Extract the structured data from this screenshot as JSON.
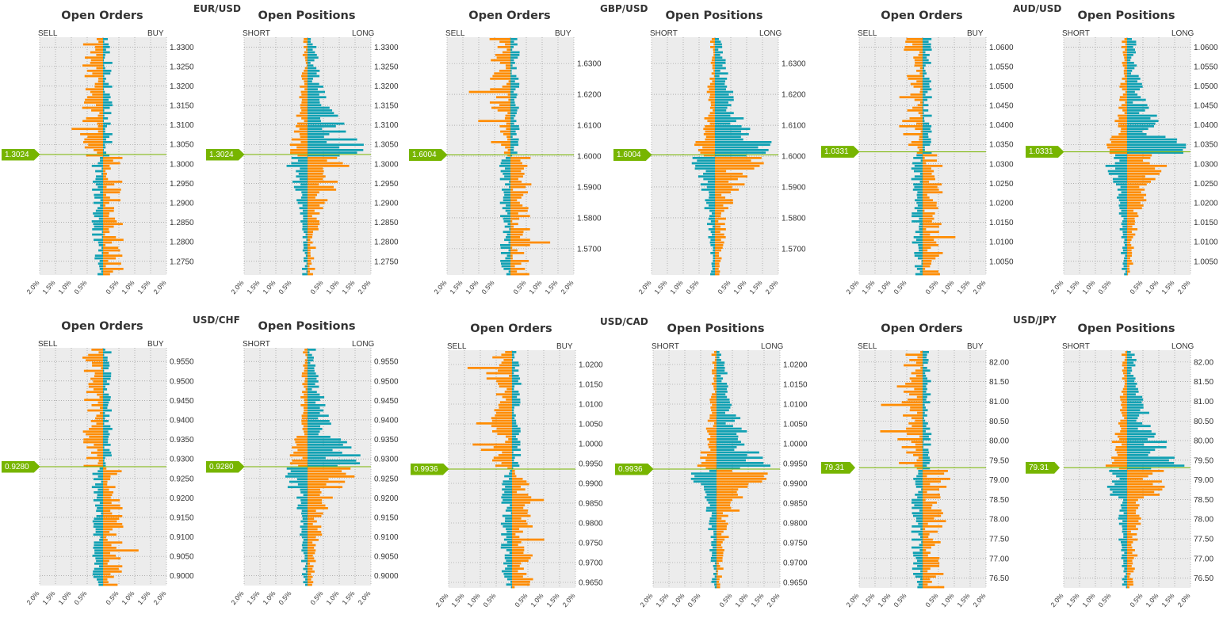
{
  "colors": {
    "orange": "#ff8c00",
    "teal": "#11a1b3",
    "priceline": "#77b500",
    "plotbg": "#ececec",
    "grid": "#888888"
  },
  "chart_data": [
    {
      "pair": "EUR/USD",
      "price_label": "1.3024",
      "price": 1.3024,
      "ymin": 1.2715,
      "ymax": 1.3325,
      "yticks": [
        "1.2750",
        "1.2800",
        "1.2850",
        "1.2900",
        "1.2950",
        "1.3000",
        "1.3050",
        "1.3100",
        "1.3150",
        "1.3200",
        "1.3250",
        "1.3300"
      ],
      "orders": {
        "type": "bar",
        "title": "Open Orders",
        "left_label": "SELL",
        "right_label": "BUY",
        "xticks": [
          "2.0%",
          "1.5%",
          "1.0%",
          "0.5%",
          "0.5%",
          "1.0%",
          "1.5%",
          "2.0%"
        ]
      },
      "positions": {
        "type": "bar",
        "title": "Open Positions",
        "left_label": "SHORT",
        "right_label": "LONG",
        "xticks": [
          "2.0%",
          "1.5%",
          "1.0%",
          "0.5%",
          "0.5%",
          "1.0%",
          "1.5%",
          "2.0%"
        ]
      }
    },
    {
      "pair": "GBP/USD",
      "price_label": "1.6004",
      "price": 1.6004,
      "ymin": 1.5615,
      "ymax": 1.6385,
      "yticks": [
        "1.5700",
        "1.5800",
        "1.5900",
        "1.6000",
        "1.6100",
        "1.6200",
        "1.6300"
      ],
      "orders": {
        "type": "bar",
        "title": "Open Orders",
        "left_label": "SELL",
        "right_label": "BUY",
        "xticks": [
          "2.0%",
          "1.5%",
          "1.0%",
          "0.5%",
          "0.5%",
          "1.0%",
          "1.5%",
          "2.0%"
        ]
      },
      "positions": {
        "type": "bar",
        "title": "Open Positions",
        "left_label": "SHORT",
        "right_label": "LONG",
        "xticks": [
          "2.0%",
          "1.5%",
          "1.0%",
          "0.5%",
          "0.5%",
          "1.0%",
          "1.5%",
          "2.0%"
        ]
      }
    },
    {
      "pair": "AUD/USD",
      "price_label": "1.0331",
      "price": 1.0331,
      "ymin": 1.0015,
      "ymax": 1.0625,
      "yticks": [
        "1.0050",
        "1.0100",
        "1.0150",
        "1.0200",
        "1.0250",
        "1.0300",
        "1.0350",
        "1.0400",
        "1.0450",
        "1.0500",
        "1.0550",
        "1.0600"
      ],
      "orders": {
        "type": "bar",
        "title": "Open Orders",
        "left_label": "SELL",
        "right_label": "BUY",
        "xticks": [
          "2.0%",
          "1.5%",
          "1.0%",
          "0.5%",
          "0.5%",
          "1.0%",
          "1.5%",
          "2.0%"
        ]
      },
      "positions": {
        "type": "bar",
        "title": "Open Positions",
        "left_label": "SHORT",
        "right_label": "LONG",
        "xticks": [
          "2.0%",
          "1.5%",
          "1.0%",
          "0.5%",
          "0.5%",
          "1.0%",
          "1.5%",
          "2.0%"
        ]
      }
    },
    {
      "pair": "USD/CHF",
      "price_label": "0.9280",
      "price": 0.928,
      "ymin": 0.8975,
      "ymax": 0.9585,
      "yticks": [
        "0.9000",
        "0.9050",
        "0.9100",
        "0.9150",
        "0.9200",
        "0.9250",
        "0.9300",
        "0.9350",
        "0.9400",
        "0.9450",
        "0.9500",
        "0.9550"
      ],
      "orders": {
        "type": "bar",
        "title": "Open Orders",
        "left_label": "SELL",
        "right_label": "BUY",
        "xticks": [
          "2.0%",
          "1.5%",
          "1.0%",
          "0.5%",
          "0.5%",
          "1.0%",
          "1.5%",
          "2.0%"
        ]
      },
      "positions": {
        "type": "bar",
        "title": "Open Positions",
        "left_label": "SHORT",
        "right_label": "LONG",
        "xticks": [
          "2.0%",
          "1.5%",
          "1.0%",
          "0.5%",
          "0.5%",
          "1.0%",
          "1.5%",
          "2.0%"
        ]
      }
    },
    {
      "pair": "USD/CAD",
      "price_label": "0.9936",
      "price": 0.9936,
      "ymin": 0.9636,
      "ymax": 1.0236,
      "yticks": [
        "0.9650",
        "0.9700",
        "0.9750",
        "0.9800",
        "0.9850",
        "0.9900",
        "0.9950",
        "1.0000",
        "1.0050",
        "1.0100",
        "1.0150",
        "1.0200"
      ],
      "orders": {
        "type": "bar",
        "title": "Open Orders",
        "left_label": "SELL",
        "right_label": "BUY",
        "xticks": [
          "2.0%",
          "1.5%",
          "1.0%",
          "0.5%",
          "0.5%",
          "1.0%",
          "1.5%",
          "2.0%"
        ]
      },
      "positions": {
        "type": "bar",
        "title": "Open Positions",
        "left_label": "SHORT",
        "right_label": "LONG",
        "xticks": [
          "2.0%",
          "1.5%",
          "1.0%",
          "0.5%",
          "0.5%",
          "1.0%",
          "1.5%",
          "2.0%"
        ]
      }
    },
    {
      "pair": "USD/JPY",
      "price_label": "79.31",
      "price": 79.31,
      "ymin": 76.25,
      "ymax": 82.3,
      "yticks": [
        "76.50",
        "77.00",
        "77.50",
        "78.00",
        "78.50",
        "79.00",
        "79.50",
        "80.00",
        "80.50",
        "81.00",
        "81.50",
        "82.00"
      ],
      "orders": {
        "type": "bar",
        "title": "Open Orders",
        "left_label": "SELL",
        "right_label": "BUY",
        "xticks": [
          "2.0%",
          "1.5%",
          "1.0%",
          "0.5%",
          "0.5%",
          "1.0%",
          "1.5%",
          "2.0%"
        ]
      },
      "positions": {
        "type": "bar",
        "title": "Open Positions",
        "left_label": "SHORT",
        "right_label": "LONG",
        "xticks": [
          "2.0%",
          "1.5%",
          "1.0%",
          "0.5%",
          "0.5%",
          "1.0%",
          "1.5%",
          "2.0%"
        ]
      }
    }
  ]
}
